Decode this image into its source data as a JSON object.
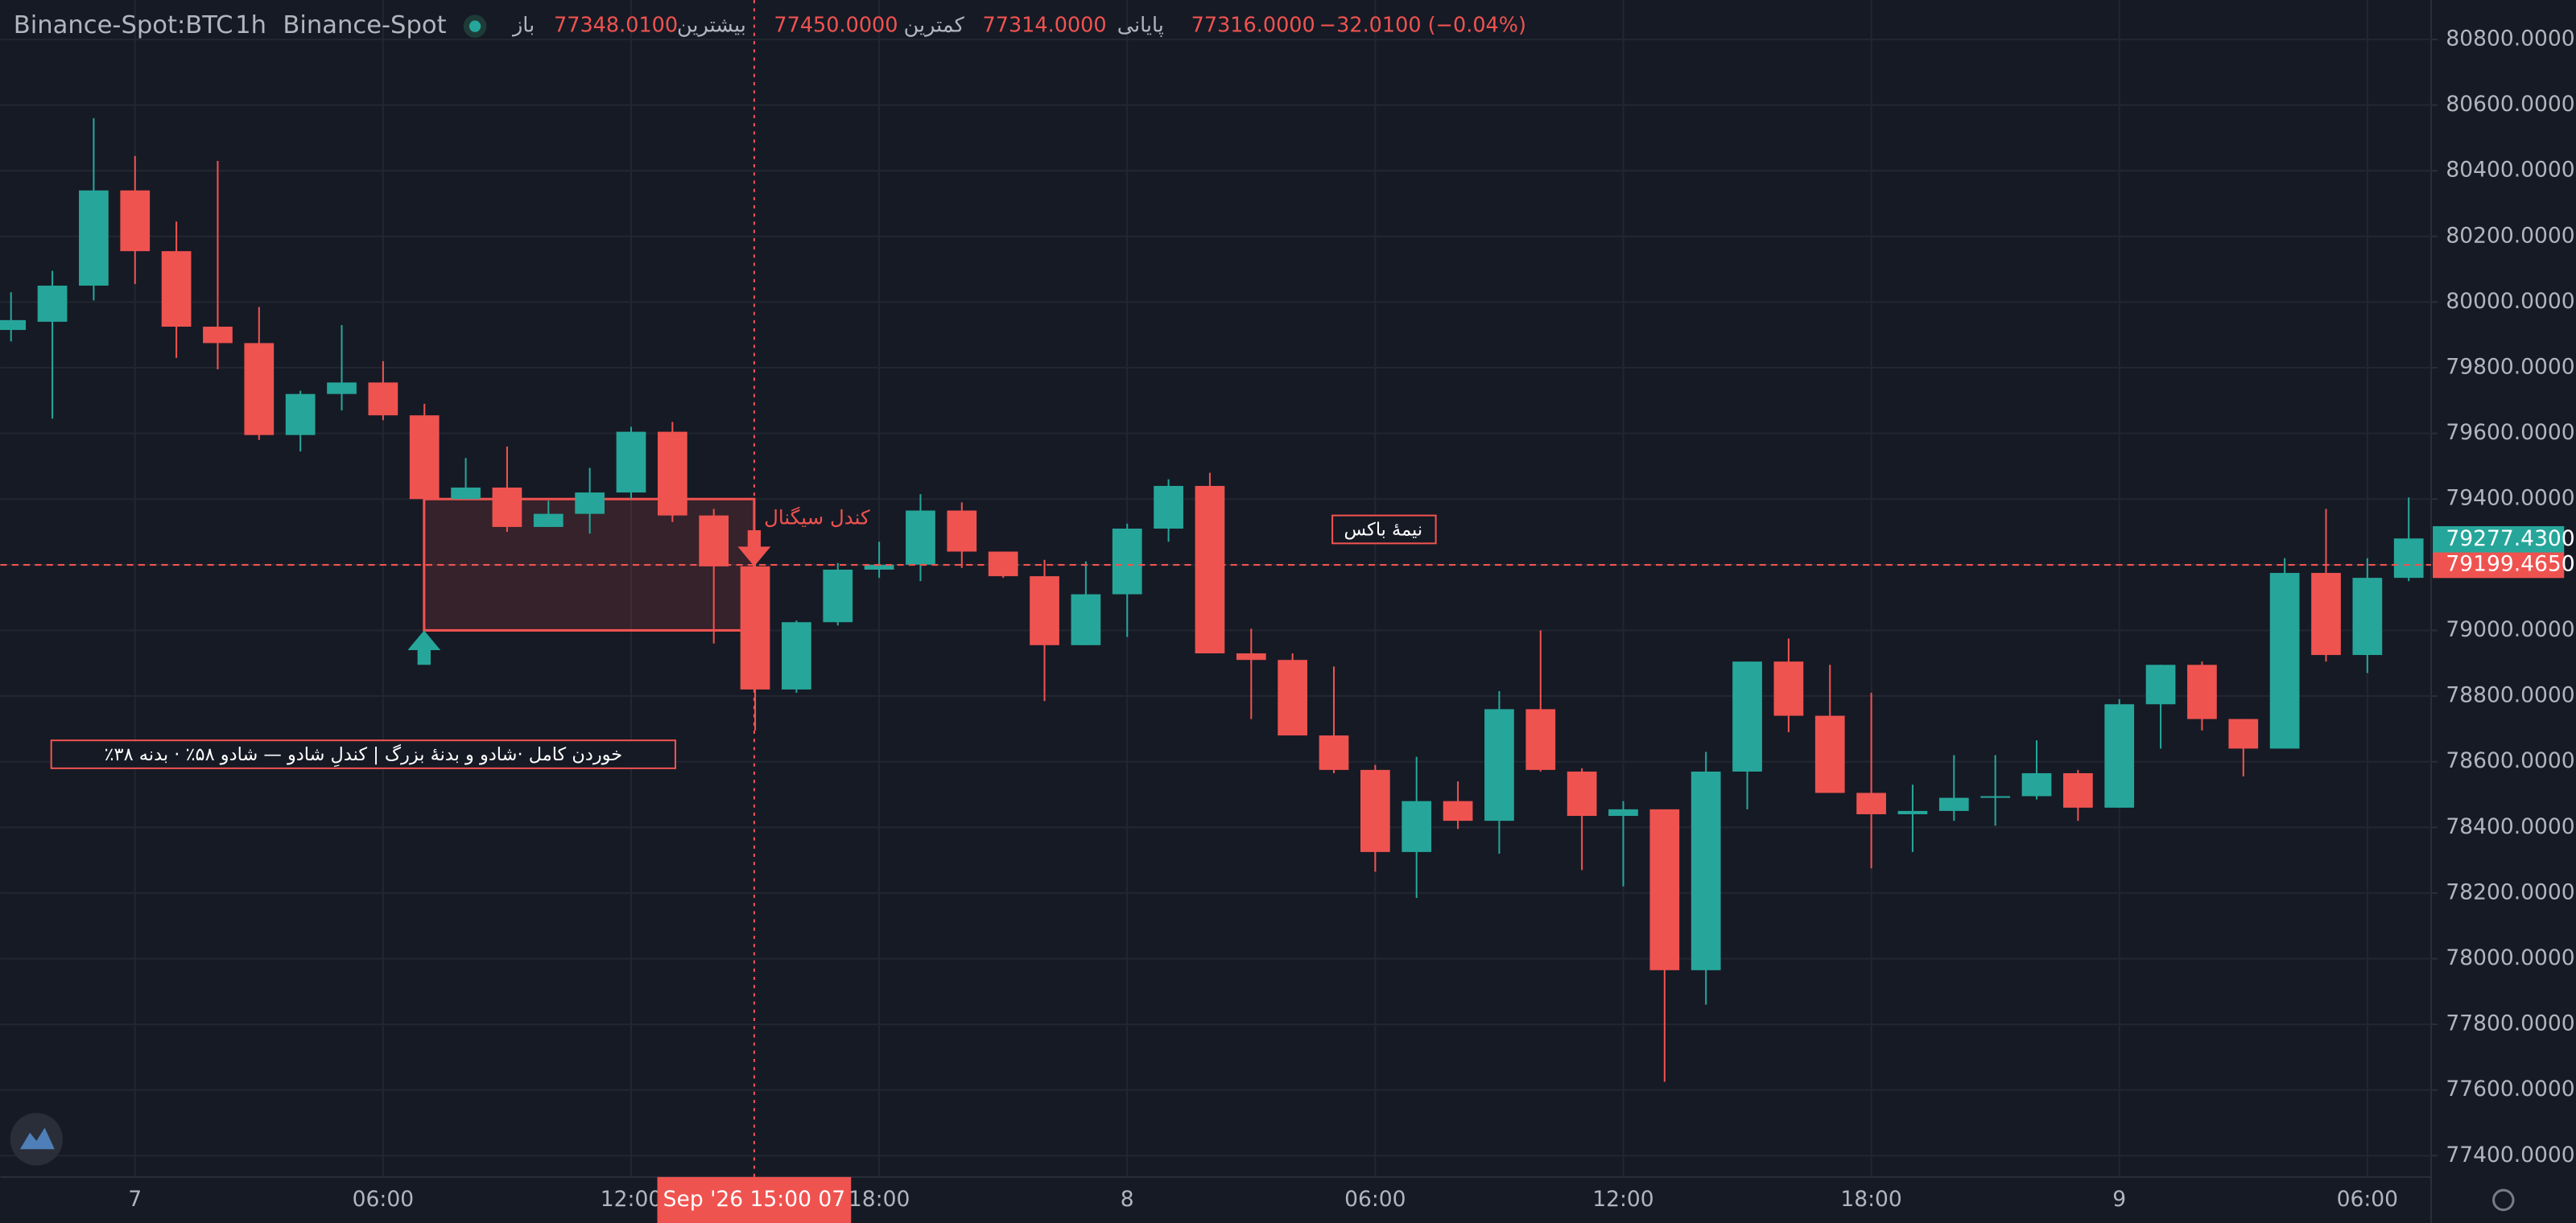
{
  "chart_data": {
    "type": "candlestick",
    "header": {
      "symbol": "Binance-Spot:BTC",
      "interval": "1h",
      "exchange": "Binance-Spot",
      "open_label": "باز",
      "open": "77348.0100",
      "high_label": "بیشترین",
      "high": "77450.0000",
      "low_label": "کمترین",
      "low": "77314.0000",
      "close_label": "پایانی",
      "close": "77316.0000",
      "change": "−32.0100 (−0.04%)"
    },
    "categories": [
      null,
      null,
      null,
      "7",
      null,
      null,
      null,
      null,
      null,
      "06:00",
      null,
      null,
      null,
      null,
      null,
      "12:00",
      null,
      null,
      null,
      null,
      null,
      "18:00",
      null,
      null,
      null,
      null,
      null,
      "8",
      null,
      null,
      null,
      null,
      null,
      "06:00",
      null,
      null,
      null,
      null,
      null,
      "12:00",
      null,
      null,
      null,
      null,
      null,
      "18:00",
      null,
      null,
      null,
      null,
      null,
      "9",
      null,
      null,
      null,
      null,
      null,
      "06:00",
      null
    ],
    "open": [
      79915,
      79940,
      80050,
      80340,
      80155,
      79925,
      79875,
      79595,
      79720,
      79755,
      79655,
      79400,
      79435,
      79315,
      79355,
      79420,
      79605,
      79350,
      79195,
      78820,
      79025,
      79185,
      79200,
      79365,
      79240,
      79165,
      78955,
      79110,
      79310,
      79440,
      78930,
      78910,
      78680,
      78575,
      78325,
      78480,
      78420,
      78760,
      78570,
      78435,
      78455,
      77965,
      78570,
      78905,
      78740,
      78505,
      78440,
      78450,
      78490,
      78495,
      78565,
      78460,
      78775,
      78895,
      78730,
      78640,
      79175,
      78925,
      79160
    ],
    "high": [
      80030,
      80095,
      80560,
      80445,
      80245,
      80430,
      79985,
      79730,
      79930,
      79820,
      79690,
      79525,
      79560,
      79395,
      79495,
      79620,
      79635,
      79370,
      79270,
      79030,
      79205,
      79270,
      79415,
      79390,
      79240,
      79215,
      79210,
      79325,
      79460,
      79480,
      79005,
      78930,
      78890,
      78590,
      78615,
      78540,
      78815,
      79000,
      78580,
      78480,
      78455,
      78630,
      78905,
      78975,
      78895,
      78810,
      78530,
      78620,
      78620,
      78665,
      78575,
      78790,
      78895,
      78905,
      78730,
      79220,
      79370,
      79220,
      79405
    ],
    "low": [
      79880,
      79645,
      80005,
      80055,
      79830,
      79795,
      79580,
      79545,
      79670,
      79640,
      79400,
      79400,
      79300,
      79315,
      79295,
      79400,
      79330,
      78960,
      78695,
      78810,
      79015,
      79160,
      79150,
      79190,
      79160,
      78785,
      78955,
      78980,
      79270,
      78930,
      78730,
      78680,
      78565,
      78265,
      78185,
      78395,
      78320,
      78570,
      78270,
      78220,
      77625,
      77860,
      78455,
      78690,
      78505,
      78275,
      78325,
      78420,
      78405,
      78485,
      78420,
      78460,
      78640,
      78695,
      78555,
      78640,
      78905,
      78870,
      79150
    ],
    "close": [
      79945,
      80050,
      80340,
      80155,
      79925,
      79875,
      79595,
      79720,
      79755,
      79655,
      79400,
      79435,
      79315,
      79355,
      79420,
      79605,
      79350,
      79195,
      78820,
      79025,
      79185,
      79200,
      79365,
      79240,
      79165,
      78955,
      79110,
      79310,
      79440,
      78930,
      78910,
      78680,
      78575,
      78325,
      78480,
      78420,
      78760,
      78575,
      78435,
      78455,
      77965,
      78570,
      78905,
      78740,
      78505,
      78440,
      78450,
      78490,
      78495,
      78565,
      78460,
      78775,
      78895,
      78730,
      78640,
      79175,
      78925,
      79160,
      79280
    ],
    "up_color": "#26a69a",
    "down_color": "#ef5350",
    "ylim": [
      77300,
      80900
    ],
    "yticks": [
      {
        "value": 80800,
        "label": "80800.0000"
      },
      {
        "value": 80600,
        "label": "80600.0000"
      },
      {
        "value": 80400,
        "label": "80400.0000"
      },
      {
        "value": 80200,
        "label": "80200.0000"
      },
      {
        "value": 80000,
        "label": "80000.0000"
      },
      {
        "value": 79800,
        "label": "79800.0000"
      },
      {
        "value": 79600,
        "label": "79600.0000"
      },
      {
        "value": 79400,
        "label": "79400.0000"
      },
      {
        "value": 79200,
        "label": "79200.0000"
      },
      {
        "value": 79000,
        "label": "79000.0000"
      },
      {
        "value": 78800,
        "label": "78800.0000"
      },
      {
        "value": 78600,
        "label": "78600.0000"
      },
      {
        "value": 78400,
        "label": "78400.0000"
      },
      {
        "value": 78200,
        "label": "78200.0000"
      },
      {
        "value": 78000,
        "label": "78000.0000"
      },
      {
        "value": 77800,
        "label": "77800.0000"
      },
      {
        "value": 77600,
        "label": "77600.0000"
      },
      {
        "value": 77400,
        "label": "77400.0000"
      }
    ],
    "grid": true,
    "last_price": {
      "value": 79277.43,
      "label": "79277.4300"
    },
    "line_price": {
      "value": 79199.465,
      "label": "79199.4650"
    },
    "box": {
      "top": 79400,
      "bottom": 79000
    },
    "signal_label": "کندل سیگنال",
    "box_mid_label": "نیمهٔ باکس",
    "pattern_label": "٪خوردن کامل ·شادو و بدنهٔ بزرگ | کندلِ شادو — شادو ۵۸٪ · بدنه ۳۸",
    "crosshair_label": "Sep '26   15:00 07"
  }
}
